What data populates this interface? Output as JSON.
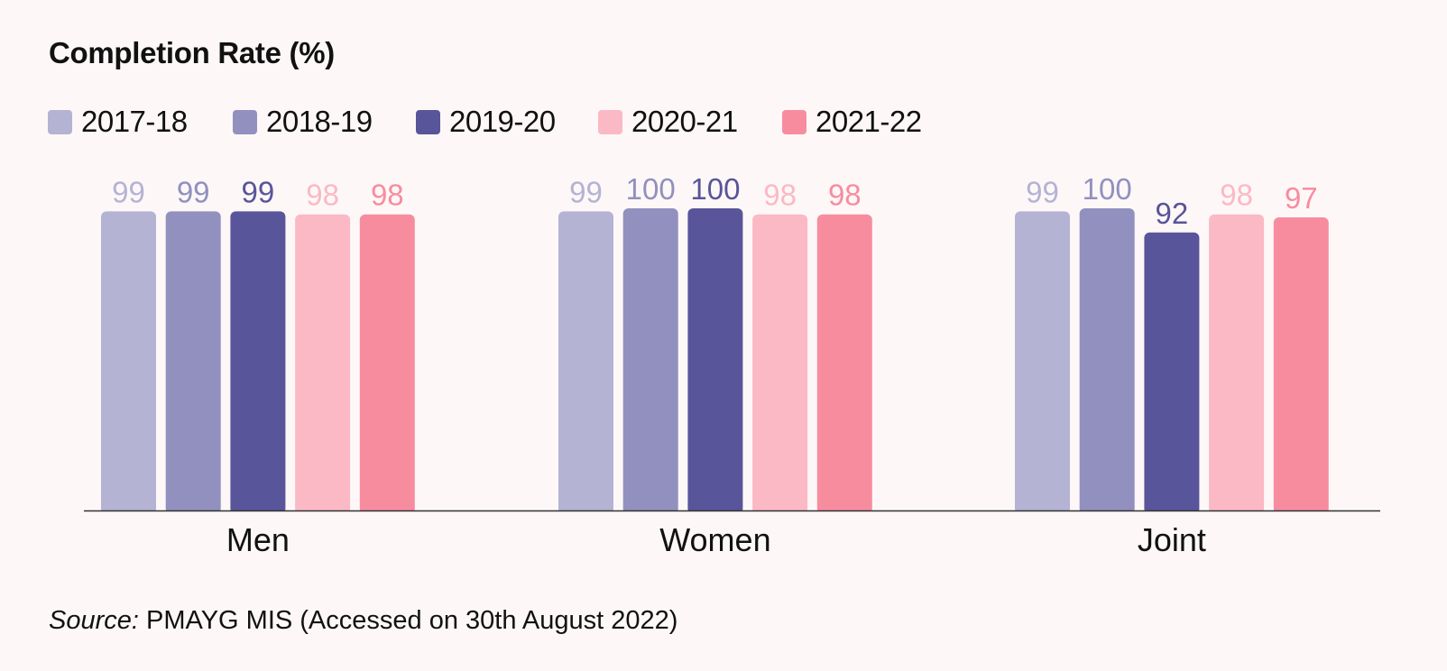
{
  "chart_data": {
    "type": "bar",
    "title": "Completion Rate (%)",
    "categories": [
      "Men",
      "Women",
      "Joint"
    ],
    "series": [
      {
        "name": "2017-18",
        "color": "#b4b3d4",
        "values": [
          99,
          99,
          99
        ]
      },
      {
        "name": "2018-19",
        "color": "#9190be",
        "values": [
          99,
          100,
          100
        ]
      },
      {
        "name": "2019-20",
        "color": "#58559a",
        "values": [
          99,
          100,
          92
        ]
      },
      {
        "name": "2020-21",
        "color": "#fbb9c5",
        "values": [
          98,
          98,
          98
        ]
      },
      {
        "name": "2021-22",
        "color": "#f88c9f",
        "values": [
          98,
          98,
          97
        ]
      }
    ],
    "ylim": [
      0,
      100
    ],
    "xlabel": "",
    "ylabel": "",
    "legend": "top-left",
    "grid": false
  },
  "source": {
    "label": "Source:",
    "text": " PMAYG MIS (Accessed on 30th August 2022)"
  }
}
